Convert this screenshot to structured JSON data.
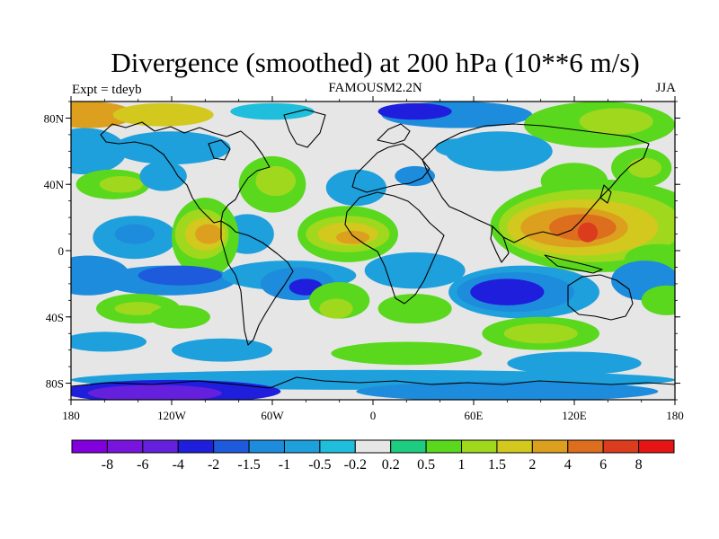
{
  "title": "Divergence (smoothed) at 200 hPa (10**6 m/s)",
  "experiment": "Expt = tdeyb",
  "model": "FAMOUSM2.2N",
  "season": "JJA",
  "map": {
    "projection": "cylindrical-equidistant",
    "lon_range": [
      -180,
      180
    ],
    "lat_range": [
      -90,
      90
    ],
    "lat_ticks": [
      {
        "value": 80,
        "label": "80N"
      },
      {
        "value": 40,
        "label": "40N"
      },
      {
        "value": 0,
        "label": "0"
      },
      {
        "value": -40,
        "label": "40S"
      },
      {
        "value": -80,
        "label": "80S"
      }
    ],
    "lon_ticks": [
      {
        "value": -180,
        "label": "180"
      },
      {
        "value": -120,
        "label": "120W"
      },
      {
        "value": -60,
        "label": "60W"
      },
      {
        "value": 0,
        "label": "0"
      },
      {
        "value": 60,
        "label": "60E"
      },
      {
        "value": 120,
        "label": "120E"
      },
      {
        "value": 180,
        "label": "180"
      }
    ],
    "background_class": "-0.2 to 0.2",
    "regions": [
      {
        "lon": -170,
        "lat": 82,
        "rx": 28,
        "ry": 8,
        "class": 13
      },
      {
        "lon": -125,
        "lat": 82,
        "rx": 30,
        "ry": 7,
        "class": 12
      },
      {
        "lon": -60,
        "lat": 84,
        "rx": 25,
        "ry": 5,
        "class": 7
      },
      {
        "lon": 50,
        "lat": 82,
        "rx": 45,
        "ry": 8,
        "class": 5
      },
      {
        "lon": 25,
        "lat": 84,
        "rx": 22,
        "ry": 5,
        "class": 3
      },
      {
        "lon": 135,
        "lat": 76,
        "rx": 45,
        "ry": 14,
        "class": 10
      },
      {
        "lon": 145,
        "lat": 78,
        "rx": 22,
        "ry": 8,
        "class": 11
      },
      {
        "lon": -172,
        "lat": 60,
        "rx": 25,
        "ry": 14,
        "class": 6
      },
      {
        "lon": -120,
        "lat": 62,
        "rx": 35,
        "ry": 10,
        "class": 6
      },
      {
        "lon": -155,
        "lat": 40,
        "rx": 22,
        "ry": 9,
        "class": 10
      },
      {
        "lon": -150,
        "lat": 40,
        "rx": 13,
        "ry": 5,
        "class": 11
      },
      {
        "lon": -125,
        "lat": 45,
        "rx": 14,
        "ry": 9,
        "class": 6
      },
      {
        "lon": -60,
        "lat": 40,
        "rx": 20,
        "ry": 17,
        "class": 10
      },
      {
        "lon": -58,
        "lat": 42,
        "rx": 12,
        "ry": 9,
        "class": 11
      },
      {
        "lon": -10,
        "lat": 38,
        "rx": 18,
        "ry": 11,
        "class": 6
      },
      {
        "lon": 25,
        "lat": 45,
        "rx": 12,
        "ry": 6,
        "class": 5
      },
      {
        "lon": 55,
        "lat": 62,
        "rx": 18,
        "ry": 6,
        "class": 6
      },
      {
        "lon": 75,
        "lat": 60,
        "rx": 32,
        "ry": 12,
        "class": 6
      },
      {
        "lon": 120,
        "lat": 42,
        "rx": 20,
        "ry": 11,
        "class": 10
      },
      {
        "lon": 160,
        "lat": 50,
        "rx": 18,
        "ry": 12,
        "class": 10
      },
      {
        "lon": 162,
        "lat": 50,
        "rx": 10,
        "ry": 6,
        "class": 11
      },
      {
        "lon": -142,
        "lat": 8,
        "rx": 25,
        "ry": 13,
        "class": 6
      },
      {
        "lon": -142,
        "lat": 10,
        "rx": 12,
        "ry": 6,
        "class": 5
      },
      {
        "lon": -75,
        "lat": 10,
        "rx": 16,
        "ry": 12,
        "class": 6
      },
      {
        "lon": -100,
        "lat": 8,
        "rx": 20,
        "ry": 24,
        "class": 10
      },
      {
        "lon": -102,
        "lat": 10,
        "rx": 16,
        "ry": 15,
        "class": 11
      },
      {
        "lon": -100,
        "lat": 10,
        "rx": 12,
        "ry": 10,
        "class": 12
      },
      {
        "lon": -98,
        "lat": 10,
        "rx": 8,
        "ry": 6,
        "class": 13
      },
      {
        "lon": -15,
        "lat": 10,
        "rx": 30,
        "ry": 17,
        "class": 10
      },
      {
        "lon": -15,
        "lat": 10,
        "rx": 25,
        "ry": 11,
        "class": 11
      },
      {
        "lon": -15,
        "lat": 10,
        "rx": 18,
        "ry": 7,
        "class": 12
      },
      {
        "lon": -12,
        "lat": 8,
        "rx": 10,
        "ry": 4,
        "class": 13
      },
      {
        "lon": 135,
        "lat": 15,
        "rx": 65,
        "ry": 28,
        "class": 10
      },
      {
        "lon": 130,
        "lat": 15,
        "rx": 55,
        "ry": 22,
        "class": 11
      },
      {
        "lon": 125,
        "lat": 14,
        "rx": 45,
        "ry": 17,
        "class": 12
      },
      {
        "lon": 120,
        "lat": 14,
        "rx": 32,
        "ry": 12,
        "class": 13
      },
      {
        "lon": 125,
        "lat": 14,
        "rx": 20,
        "ry": 8,
        "class": 14
      },
      {
        "lon": 128,
        "lat": 11,
        "rx": 6,
        "ry": 6,
        "class": 15
      },
      {
        "lon": 170,
        "lat": -5,
        "rx": 20,
        "ry": 9,
        "class": 10
      },
      {
        "lon": -170,
        "lat": -15,
        "rx": 25,
        "ry": 12,
        "class": 5
      },
      {
        "lon": -122,
        "lat": -18,
        "rx": 40,
        "ry": 9,
        "class": 5
      },
      {
        "lon": -115,
        "lat": -15,
        "rx": 25,
        "ry": 6,
        "class": 4
      },
      {
        "lon": -50,
        "lat": -15,
        "rx": 40,
        "ry": 9,
        "class": 6
      },
      {
        "lon": -45,
        "lat": -20,
        "rx": 22,
        "ry": 10,
        "class": 5
      },
      {
        "lon": -40,
        "lat": -22,
        "rx": 10,
        "ry": 5,
        "class": 3
      },
      {
        "lon": 25,
        "lat": -12,
        "rx": 30,
        "ry": 11,
        "class": 6
      },
      {
        "lon": 90,
        "lat": -25,
        "rx": 45,
        "ry": 16,
        "class": 6
      },
      {
        "lon": 85,
        "lat": -25,
        "rx": 35,
        "ry": 12,
        "class": 5
      },
      {
        "lon": 80,
        "lat": -25,
        "rx": 22,
        "ry": 8,
        "class": 3
      },
      {
        "lon": 162,
        "lat": -18,
        "rx": 20,
        "ry": 12,
        "class": 5
      },
      {
        "lon": -140,
        "lat": -35,
        "rx": 25,
        "ry": 9,
        "class": 10
      },
      {
        "lon": -140,
        "lat": -35,
        "rx": 14,
        "ry": 4,
        "class": 11
      },
      {
        "lon": -115,
        "lat": -40,
        "rx": 18,
        "ry": 7,
        "class": 10
      },
      {
        "lon": -20,
        "lat": -30,
        "rx": 18,
        "ry": 11,
        "class": 10
      },
      {
        "lon": -22,
        "lat": -35,
        "rx": 10,
        "ry": 6,
        "class": 11
      },
      {
        "lon": 25,
        "lat": -35,
        "rx": 22,
        "ry": 9,
        "class": 10
      },
      {
        "lon": 100,
        "lat": -50,
        "rx": 35,
        "ry": 10,
        "class": 10
      },
      {
        "lon": 100,
        "lat": -50,
        "rx": 22,
        "ry": 6,
        "class": 11
      },
      {
        "lon": 175,
        "lat": -30,
        "rx": 15,
        "ry": 9,
        "class": 10
      },
      {
        "lon": -160,
        "lat": -55,
        "rx": 25,
        "ry": 6,
        "class": 6
      },
      {
        "lon": -90,
        "lat": -60,
        "rx": 30,
        "ry": 7,
        "class": 6
      },
      {
        "lon": 20,
        "lat": -62,
        "rx": 45,
        "ry": 7,
        "class": 10
      },
      {
        "lon": 120,
        "lat": -68,
        "rx": 40,
        "ry": 7,
        "class": 6
      },
      {
        "lon": 0,
        "lat": -78,
        "rx": 180,
        "ry": 6,
        "class": 6
      },
      {
        "lon": -120,
        "lat": -85,
        "rx": 65,
        "ry": 7,
        "class": 3
      },
      {
        "lon": -130,
        "lat": -86,
        "rx": 40,
        "ry": 5,
        "class": 2
      },
      {
        "lon": 80,
        "lat": -85,
        "rx": 90,
        "ry": 6,
        "class": 5
      }
    ]
  },
  "colorbar": {
    "colors": [
      "#8200dc",
      "#7814dc",
      "#6420dc",
      "#1e1edc",
      "#1e5adc",
      "#1e8cdc",
      "#1ea0dc",
      "#1ebedc",
      "#e6e6e6",
      "#1ecc80",
      "#5ad81e",
      "#a0d81e",
      "#d2c81e",
      "#dca01e",
      "#dc6e1e",
      "#dc3c1e",
      "#e61414"
    ],
    "labels": [
      "-8",
      "-6",
      "-4",
      "-2",
      "-1.5",
      "-1",
      "-0.5",
      "-0.2",
      "0.2",
      "0.5",
      "1",
      "1.5",
      "2",
      "4",
      "6",
      "8"
    ]
  }
}
